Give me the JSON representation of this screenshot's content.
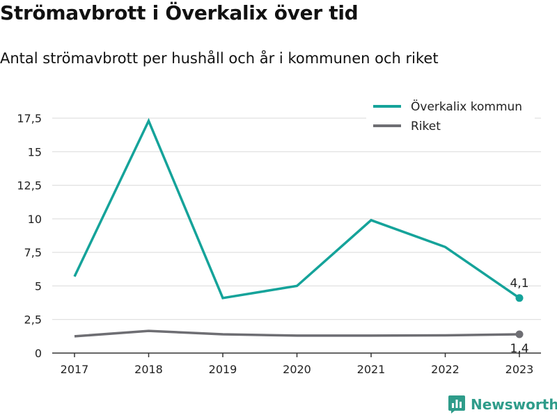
{
  "title": "Strömavbrott i Överkalix över tid",
  "subtitle": "Antal strömavbrott per hushåll och år i kommunen och riket",
  "brand": {
    "name": "Newsworthy",
    "icon": "newsworthy-logo-icon"
  },
  "colors": {
    "kommun": "#15a39a",
    "riket": "#6e6e73",
    "grid": "#d9d9d9",
    "axis": "#333333"
  },
  "chart_data": {
    "type": "line",
    "x": [
      "2017",
      "2018",
      "2019",
      "2020",
      "2021",
      "2022",
      "2023"
    ],
    "series": [
      {
        "name": "Överkalix kommun",
        "values": [
          5.7,
          17.3,
          4.1,
          5.0,
          9.9,
          7.9,
          4.1
        ]
      },
      {
        "name": "Riket",
        "values": [
          1.25,
          1.65,
          1.4,
          1.3,
          1.3,
          1.32,
          1.4
        ]
      }
    ],
    "yticks": [
      0,
      2.5,
      5,
      7.5,
      10,
      12.5,
      15,
      17.5
    ],
    "ytick_labels": [
      "0",
      "2,5",
      "5",
      "7,5",
      "10",
      "12,5",
      "15",
      "17,5"
    ],
    "ylim": [
      0,
      17.5
    ],
    "grid": true,
    "legend_position": "top-right",
    "end_labels": [
      "4,1",
      "1,4"
    ]
  }
}
